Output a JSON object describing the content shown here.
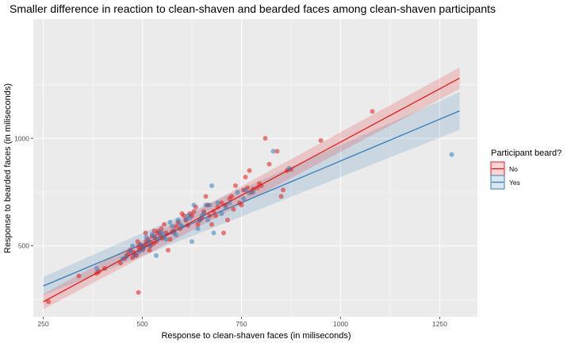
{
  "chart_data": {
    "type": "scatter",
    "title": "Smaller difference in reaction to clean-shaven and bearded faces among clean-shaven participants",
    "xlabel": "Response to clean-shaven faces (in miliseconds)",
    "ylabel": "Response to bearded faces (in miliseconds)",
    "xlim": [
      225,
      1345
    ],
    "ylim": [
      170,
      1555
    ],
    "xticks": [
      250,
      500,
      750,
      1000,
      1250
    ],
    "yticks": [
      500,
      1000
    ],
    "grid": true,
    "legend": {
      "title": "Participant beard?",
      "placement": "right",
      "entries": [
        "No",
        "Yes"
      ]
    },
    "series": [
      {
        "name": "No",
        "color": "#e41a1c",
        "fit": {
          "x": [
            250,
            1300
          ],
          "y": [
            240,
            1280
          ],
          "ci_low": [
            205,
            1230
          ],
          "ci_high": [
            275,
            1330
          ]
        },
        "points": [
          [
            263,
            240
          ],
          [
            340,
            360
          ],
          [
            385,
            372
          ],
          [
            390,
            380
          ],
          [
            405,
            395
          ],
          [
            445,
            420
          ],
          [
            455,
            440
          ],
          [
            460,
            455
          ],
          [
            465,
            465
          ],
          [
            470,
            480
          ],
          [
            475,
            445
          ],
          [
            478,
            470
          ],
          [
            480,
            460
          ],
          [
            485,
            455
          ],
          [
            488,
            520
          ],
          [
            490,
            497
          ],
          [
            492,
            480
          ],
          [
            495,
            505
          ],
          [
            497,
            490
          ],
          [
            500,
            495
          ],
          [
            502,
            485
          ],
          [
            505,
            500
          ],
          [
            508,
            560
          ],
          [
            510,
            520
          ],
          [
            512,
            505
          ],
          [
            515,
            530
          ],
          [
            518,
            480
          ],
          [
            520,
            500
          ],
          [
            522,
            515
          ],
          [
            525,
            545
          ],
          [
            528,
            510
          ],
          [
            530,
            570
          ],
          [
            532,
            540
          ],
          [
            535,
            520
          ],
          [
            538,
            560
          ],
          [
            540,
            570
          ],
          [
            545,
            550
          ],
          [
            548,
            580
          ],
          [
            550,
            535
          ],
          [
            555,
            600
          ],
          [
            560,
            560
          ],
          [
            565,
            480
          ],
          [
            570,
            530
          ],
          [
            575,
            565
          ],
          [
            580,
            570
          ],
          [
            585,
            590
          ],
          [
            590,
            610
          ],
          [
            595,
            580
          ],
          [
            600,
            650
          ],
          [
            605,
            640
          ],
          [
            610,
            620
          ],
          [
            615,
            595
          ],
          [
            620,
            650
          ],
          [
            625,
            640
          ],
          [
            630,
            660
          ],
          [
            635,
            680
          ],
          [
            640,
            600
          ],
          [
            645,
            620
          ],
          [
            650,
            630
          ],
          [
            655,
            660
          ],
          [
            660,
            730
          ],
          [
            665,
            690
          ],
          [
            670,
            640
          ],
          [
            675,
            600
          ],
          [
            680,
            660
          ],
          [
            685,
            640
          ],
          [
            690,
            680
          ],
          [
            700,
            700
          ],
          [
            705,
            560
          ],
          [
            710,
            690
          ],
          [
            715,
            620
          ],
          [
            720,
            720
          ],
          [
            725,
            730
          ],
          [
            730,
            670
          ],
          [
            735,
            780
          ],
          [
            745,
            700
          ],
          [
            750,
            690
          ],
          [
            755,
            760
          ],
          [
            760,
            820
          ],
          [
            765,
            770
          ],
          [
            770,
            850
          ],
          [
            775,
            750
          ],
          [
            780,
            765
          ],
          [
            790,
            770
          ],
          [
            795,
            790
          ],
          [
            800,
            780
          ],
          [
            810,
            1000
          ],
          [
            820,
            880
          ],
          [
            840,
            940
          ],
          [
            850,
            730
          ],
          [
            855,
            760
          ],
          [
            865,
            850
          ],
          [
            875,
            855
          ],
          [
            950,
            990
          ],
          [
            1080,
            1125
          ],
          [
            490,
            283
          ]
        ]
      },
      {
        "name": "Yes",
        "color": "#377eb8",
        "fit": {
          "x": [
            250,
            1300
          ],
          "y": [
            313,
            1128
          ],
          "ci_low": [
            270,
            1040
          ],
          "ci_high": [
            355,
            1215
          ]
        },
        "points": [
          [
            385,
            395
          ],
          [
            450,
            440
          ],
          [
            460,
            450
          ],
          [
            470,
            475
          ],
          [
            475,
            500
          ],
          [
            480,
            455
          ],
          [
            490,
            470
          ],
          [
            495,
            505
          ],
          [
            500,
            480
          ],
          [
            505,
            495
          ],
          [
            510,
            540
          ],
          [
            515,
            520
          ],
          [
            520,
            500
          ],
          [
            525,
            555
          ],
          [
            530,
            545
          ],
          [
            535,
            455
          ],
          [
            540,
            530
          ],
          [
            545,
            560
          ],
          [
            550,
            560
          ],
          [
            555,
            540
          ],
          [
            560,
            530
          ],
          [
            570,
            610
          ],
          [
            575,
            590
          ],
          [
            580,
            560
          ],
          [
            585,
            550
          ],
          [
            590,
            620
          ],
          [
            595,
            600
          ],
          [
            600,
            590
          ],
          [
            610,
            620
          ],
          [
            615,
            640
          ],
          [
            620,
            630
          ],
          [
            625,
            520
          ],
          [
            630,
            690
          ],
          [
            640,
            580
          ],
          [
            645,
            620
          ],
          [
            650,
            640
          ],
          [
            655,
            650
          ],
          [
            660,
            690
          ],
          [
            665,
            620
          ],
          [
            670,
            690
          ],
          [
            675,
            780
          ],
          [
            680,
            560
          ],
          [
            690,
            700
          ],
          [
            700,
            650
          ],
          [
            710,
            680
          ],
          [
            720,
            700
          ],
          [
            740,
            750
          ],
          [
            755,
            720
          ],
          [
            760,
            760
          ],
          [
            770,
            745
          ],
          [
            780,
            750
          ],
          [
            830,
            940
          ],
          [
            870,
            860
          ],
          [
            1280,
            925
          ]
        ]
      }
    ]
  }
}
